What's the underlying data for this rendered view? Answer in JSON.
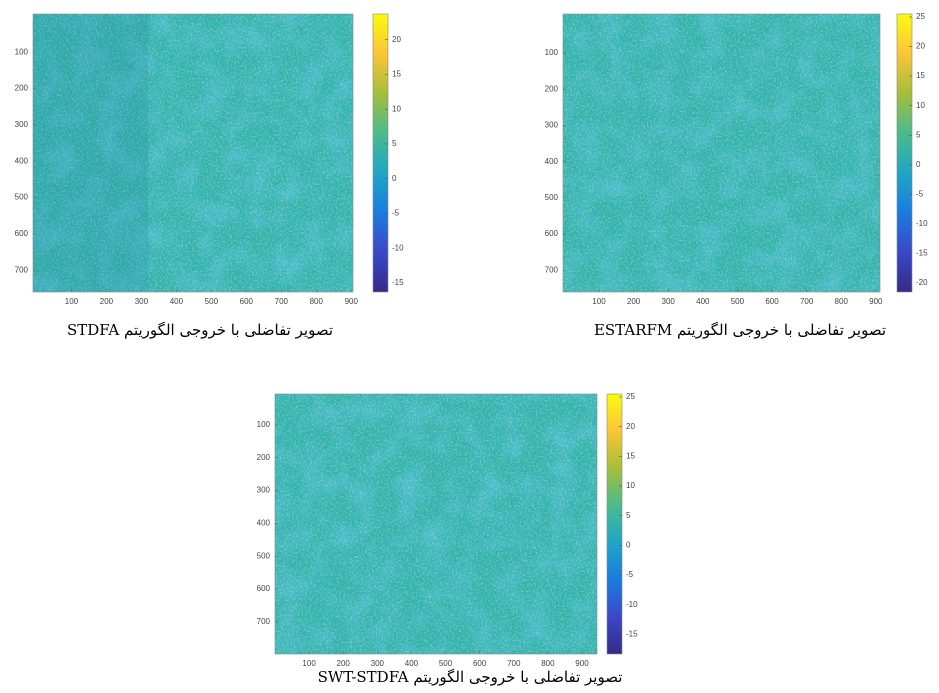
{
  "chart_data": [
    {
      "type": "heatmap",
      "caption": "تصویر تفاضلی با خروجی الگوریتم STDFA",
      "xlim": [
        -10,
        905
      ],
      "xticks": [
        100,
        200,
        300,
        400,
        500,
        600,
        700,
        800,
        900
      ],
      "ylim": [
        -5,
        760
      ],
      "yticks": [
        100,
        200,
        300,
        400,
        500,
        600,
        700
      ],
      "y_reversed": true,
      "colormap": "parula",
      "clim": [
        -16.3,
        23.7
      ],
      "cticks": [
        20,
        15,
        10,
        5,
        0,
        -5,
        -10,
        -15
      ]
    },
    {
      "type": "heatmap",
      "caption": "تصویر تفاضلی با خروجی الگوریتم ESTARFM",
      "xlim": [
        -4,
        912
      ],
      "xticks": [
        100,
        200,
        300,
        400,
        500,
        600,
        700,
        800,
        900
      ],
      "ylim": [
        -8,
        760
      ],
      "yticks": [
        100,
        200,
        300,
        400,
        500,
        600,
        700
      ],
      "y_reversed": true,
      "colormap": "parula",
      "clim": [
        -21.5,
        25.5
      ],
      "cticks": [
        25,
        20,
        15,
        10,
        5,
        0,
        -5,
        -10,
        -15,
        -20
      ]
    },
    {
      "type": "heatmap",
      "caption": "تصویر تفاضلی با خروجی الگوریتم SWT-STDFA",
      "xlim": [
        0,
        944
      ],
      "xticks": [
        100,
        200,
        300,
        400,
        500,
        600,
        700,
        800,
        900
      ],
      "ylim": [
        6,
        798
      ],
      "yticks": [
        100,
        200,
        300,
        400,
        500,
        600,
        700
      ],
      "y_reversed": true,
      "colormap": "parula",
      "clim": [
        -18.3,
        25.5
      ],
      "cticks": [
        25,
        20,
        15,
        10,
        5,
        0,
        -5,
        -10,
        -15
      ]
    }
  ]
}
